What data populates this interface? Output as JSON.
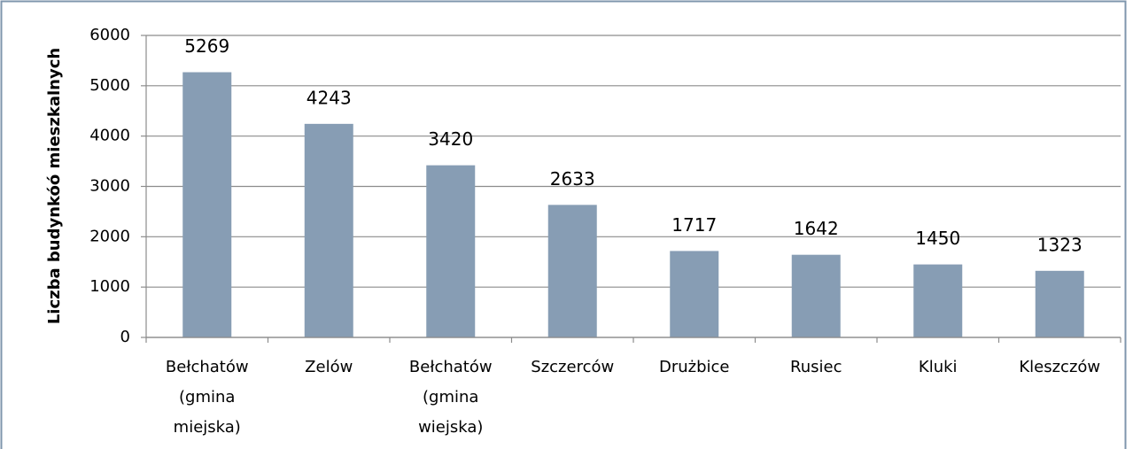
{
  "chart_data": {
    "type": "bar",
    "y_label": "Liczba budynkóó mieszkalnych",
    "categories": [
      "Bełchatów (gmina miejska)",
      "Zelów",
      "Bełchatów (gmina wiejska)",
      "Szczerców",
      "Drużbice",
      "Rusiec",
      "Kluki",
      "Kleszczów"
    ],
    "values": [
      5269,
      4243,
      3420,
      2633,
      1717,
      1642,
      1450,
      1323
    ],
    "color": "#879db4",
    "ylim": [
      0,
      6000
    ],
    "yticks": [
      0,
      1000,
      2000,
      3000,
      4000,
      5000,
      6000
    ],
    "grid": true
  }
}
